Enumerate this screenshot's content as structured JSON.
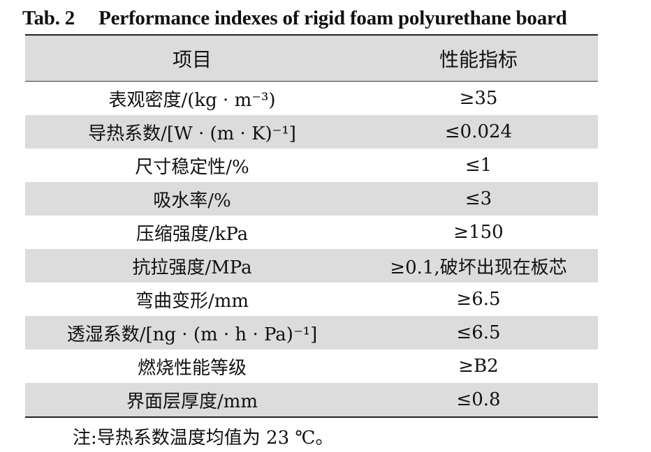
{
  "caption": {
    "number": "Tab. 2",
    "title": "Performance indexes of rigid foam polyurethane board"
  },
  "table": {
    "headers": [
      "项目",
      "性能指标"
    ],
    "rows": [
      {
        "item": "表观密度/(kg · m⁻³)",
        "value": "≥35"
      },
      {
        "item": "导热系数/[W · (m · K)⁻¹]",
        "value": "≤0.024"
      },
      {
        "item": "尺寸稳定性/%",
        "value": "≤1"
      },
      {
        "item": "吸水率/%",
        "value": "≤3"
      },
      {
        "item": "压缩强度/kPa",
        "value": "≥150"
      },
      {
        "item": "抗拉强度/MPa",
        "value": "≥0.1,破坏出现在板芯"
      },
      {
        "item": "弯曲变形/mm",
        "value": "≥6.5"
      },
      {
        "item": "透湿系数/[ng · (m · h · Pa)⁻¹]",
        "value": "≤6.5"
      },
      {
        "item": "燃烧性能等级",
        "value": "≥B2"
      },
      {
        "item": "界面层厚度/mm",
        "value": "≤0.8"
      }
    ]
  },
  "note": "注:导热系数温度均值为 23 ℃。",
  "colors": {
    "shaded_row": "#dcdcdc",
    "rule": "#222222"
  }
}
